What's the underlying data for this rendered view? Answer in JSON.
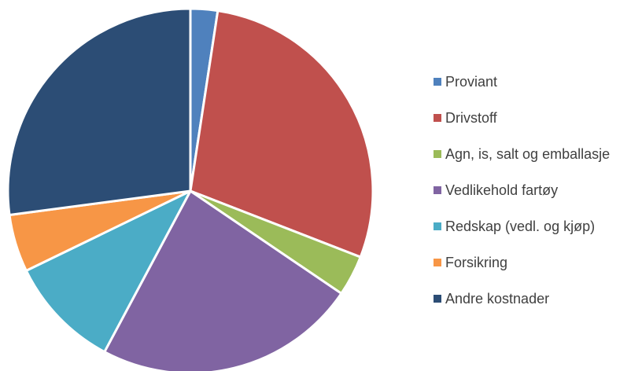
{
  "chart_data": {
    "type": "pie",
    "categories": [
      "Proviant",
      "Drivstoff",
      "Agn, is, salt og emballasje",
      "Vedlikehold fartøy",
      "Redskap (vedl. og kjøp)",
      "Forsikring",
      "Andre kostnader"
    ],
    "values": [
      2.4,
      28.5,
      3.6,
      23.3,
      10.0,
      5.1,
      27.1
    ],
    "colors": [
      "#4f81bd",
      "#c0504d",
      "#9bbb59",
      "#8064a2",
      "#4bacc6",
      "#f79646",
      "#2c4d75"
    ],
    "legend": "right"
  }
}
